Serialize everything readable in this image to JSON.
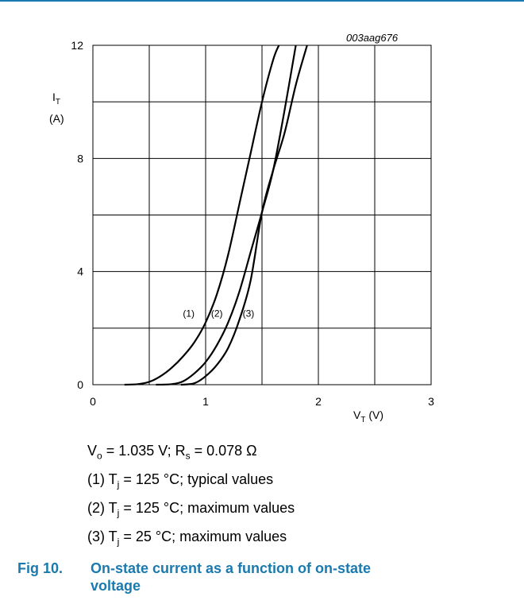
{
  "figure_code": "003aag676",
  "y_axis": {
    "symbol": "I",
    "subscript": "T",
    "unit": "(A)"
  },
  "x_axis": {
    "symbol": "V",
    "subscript": "T",
    "unit": "(V)"
  },
  "chart_data": {
    "type": "line",
    "xlim": [
      0,
      3
    ],
    "ylim": [
      0,
      12
    ],
    "x_ticks": [
      0,
      1,
      2,
      3
    ],
    "y_ticks": [
      0,
      4,
      8,
      12
    ],
    "grid": true,
    "series": [
      {
        "name": "(1)",
        "points": [
          [
            0.28,
            0
          ],
          [
            0.4,
            0.02
          ],
          [
            0.5,
            0.1
          ],
          [
            0.6,
            0.3
          ],
          [
            0.7,
            0.6
          ],
          [
            0.8,
            1.0
          ],
          [
            0.9,
            1.5
          ],
          [
            1.0,
            2.2
          ],
          [
            1.1,
            3.2
          ],
          [
            1.2,
            4.6
          ],
          [
            1.3,
            6.4
          ],
          [
            1.4,
            8.2
          ],
          [
            1.5,
            10.0
          ],
          [
            1.6,
            11.5
          ],
          [
            1.65,
            12.0
          ]
        ]
      },
      {
        "name": "(2)",
        "points": [
          [
            0.56,
            0
          ],
          [
            0.7,
            0.02
          ],
          [
            0.8,
            0.12
          ],
          [
            0.9,
            0.4
          ],
          [
            1.0,
            0.8
          ],
          [
            1.1,
            1.4
          ],
          [
            1.2,
            2.2
          ],
          [
            1.3,
            3.3
          ],
          [
            1.4,
            4.7
          ],
          [
            1.5,
            6.1
          ],
          [
            1.6,
            7.6
          ],
          [
            1.7,
            9.7
          ],
          [
            1.8,
            12.0
          ]
        ]
      },
      {
        "name": "(3)",
        "points": [
          [
            0.78,
            0
          ],
          [
            0.9,
            0.05
          ],
          [
            1.0,
            0.3
          ],
          [
            1.1,
            0.7
          ],
          [
            1.2,
            1.3
          ],
          [
            1.3,
            2.3
          ],
          [
            1.4,
            3.7
          ],
          [
            1.5,
            6.1
          ],
          [
            1.6,
            7.6
          ],
          [
            1.7,
            8.9
          ],
          [
            1.8,
            10.6
          ],
          [
            1.9,
            12.0
          ]
        ]
      }
    ],
    "curve_labels": [
      {
        "text": "(1)",
        "x": 0.85,
        "y": 2.4
      },
      {
        "text": "(2)",
        "x": 1.1,
        "y": 2.4
      },
      {
        "text": "(3)",
        "x": 1.38,
        "y": 2.4
      }
    ]
  },
  "notes": {
    "params": {
      "v_sym": "V",
      "v_sub": "o",
      "v_rest": " = 1.035 V; ",
      "r_sym": "R",
      "r_sub": "s",
      "r_rest": " = 0.078 Ω"
    },
    "items": [
      {
        "pre": "(1) T",
        "sub": "j",
        "post": " = 125 °C; typical values"
      },
      {
        "pre": "(2) T",
        "sub": "j",
        "post": " = 125 °C; maximum values"
      },
      {
        "pre": "(3) T",
        "sub": "j",
        "post": " = 25 °C; maximum values"
      }
    ]
  },
  "caption": {
    "number": "Fig 10.",
    "line1": "On-state current as a function of on-state",
    "line2": "voltage"
  },
  "colors": {
    "accent": "#1a7ab0",
    "line": "#000000",
    "grid": "#000000"
  }
}
